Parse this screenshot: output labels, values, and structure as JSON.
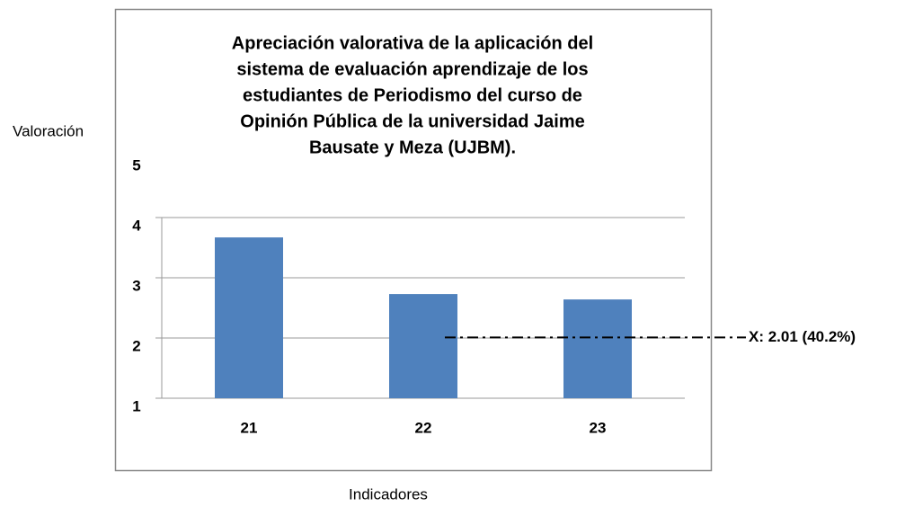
{
  "chart_data": {
    "type": "bar",
    "title": [
      "Apreciación valorativa de la aplicación del",
      "sistema de evaluación aprendizaje de los",
      "estudiantes de Periodismo del curso de",
      "Opinión Pública de la universidad Jaime",
      "Bausate y Meza (UJBM)."
    ],
    "y_label": "Valoración",
    "x_label": "Indicadores",
    "categories": [
      "21",
      "22",
      "23"
    ],
    "values": [
      3.67,
      2.73,
      2.64
    ],
    "color": "#4f81bd",
    "ylim": [
      1,
      5
    ],
    "yticks": [
      1,
      2,
      3,
      4,
      5
    ],
    "grid": true,
    "reference_line": {
      "value": 2.01,
      "label": "X: 2.01 (40.2%)"
    }
  }
}
